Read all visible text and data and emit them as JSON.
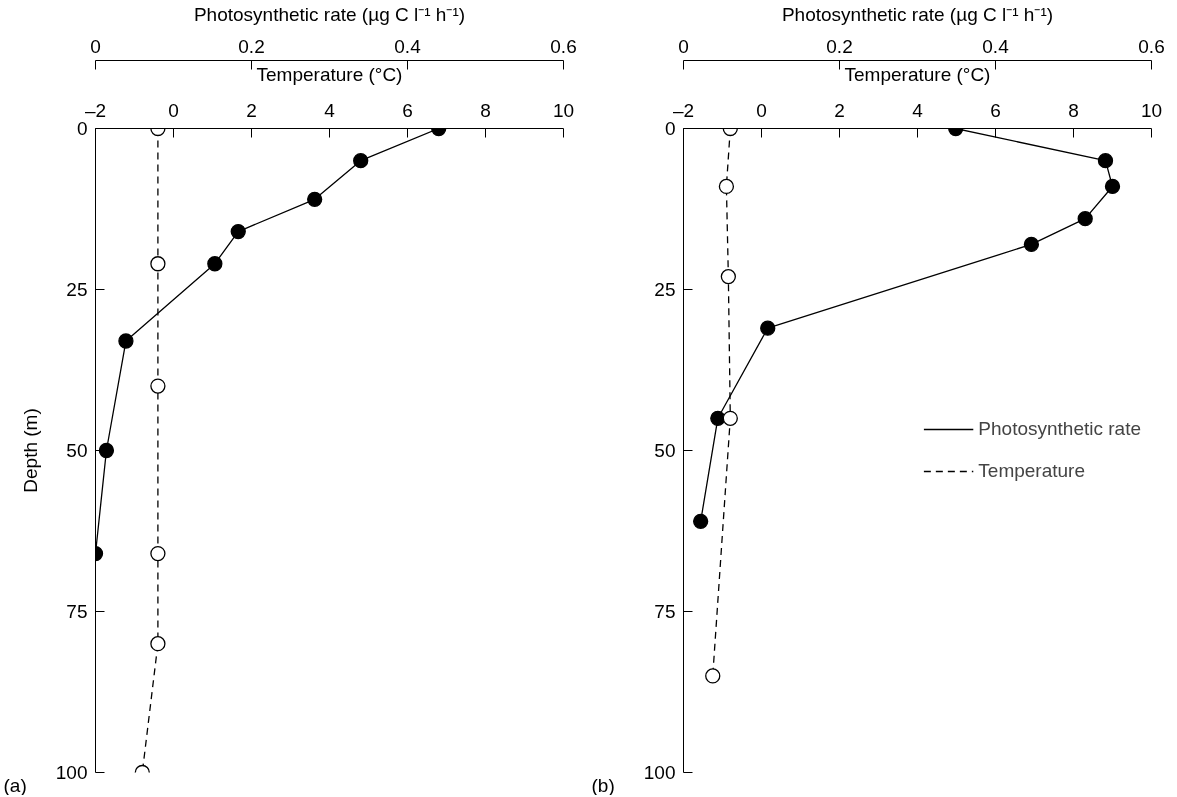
{
  "chart_data": [
    {
      "type": "line",
      "xlabel": "Temperature (°C)",
      "x2label": "Photosynthetic rate (µg C l⁻¹ h⁻¹)",
      "ylabel": "Depth (m)",
      "xlim": [
        -2,
        10
      ],
      "xticks": [
        {
          "value": -2,
          "label": "–2"
        },
        0,
        2,
        4,
        6,
        8,
        10
      ],
      "x2lim": [
        0,
        0.6
      ],
      "x2ticks": [
        0,
        0.2,
        0.4,
        0.6
      ],
      "ylim": [
        100,
        0
      ],
      "yticks": [
        0,
        25,
        50,
        75,
        100
      ],
      "grid": false,
      "legend": false,
      "marker": "circle",
      "annotations": [
        "(a)"
      ],
      "series": [
        {
          "axis": "x2",
          "color": "#000000",
          "line_style": "solid",
          "x": [
            0.44,
            0.34,
            0.281,
            0.183,
            0.153,
            0.039,
            0.014,
            0.0
          ],
          "values": [
            0,
            5,
            11,
            16,
            21,
            33,
            50,
            66
          ]
        },
        {
          "color": "#000000",
          "line_style": "dashed",
          "x": [
            -0.4,
            -0.4,
            -0.4,
            -0.4,
            -0.4,
            -0.8
          ],
          "values": [
            0,
            21,
            40,
            66,
            80,
            100
          ]
        }
      ]
    },
    {
      "type": "line",
      "xlabel": "Temperature (°C)",
      "x2label": "Photosynthetic rate (µg C l⁻¹ h⁻¹)",
      "xlim": [
        -2,
        10
      ],
      "xticks": [
        {
          "value": -2,
          "label": "–2"
        },
        0,
        2,
        4,
        6,
        8,
        10
      ],
      "x2lim": [
        0,
        0.6
      ],
      "x2ticks": [
        0,
        0.2,
        0.4,
        0.6
      ],
      "ylim": [
        100,
        0
      ],
      "yticks": [
        0,
        25,
        50,
        75,
        100
      ],
      "grid": false,
      "legend": "right",
      "marker": "circle",
      "annotations": [
        "(b)"
      ],
      "series": [
        {
          "name": "Photosynthetic rate",
          "axis": "x2",
          "color": "#000000",
          "line_style": "solid",
          "x": [
            0.349,
            0.541,
            0.55,
            0.515,
            0.446,
            0.108,
            0.044,
            0.022
          ],
          "values": [
            0,
            5,
            9,
            14,
            18,
            31,
            45,
            61
          ]
        },
        {
          "name": "Temperature",
          "color": "#000000",
          "line_style": "dashed",
          "x": [
            -0.8,
            -0.9,
            -0.85,
            -0.8,
            -1.25
          ],
          "values": [
            0,
            9,
            23,
            45,
            85
          ]
        }
      ]
    }
  ]
}
